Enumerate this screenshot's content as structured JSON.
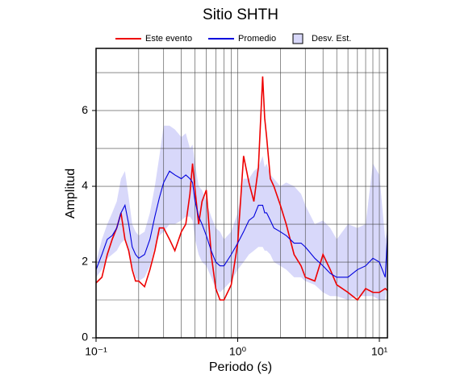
{
  "chart_data": {
    "type": "line",
    "title": "Sitio SHTH",
    "xlabel": "Periodo (s)",
    "ylabel": "Amplitud",
    "xscale": "log",
    "xlim": [
      0.1,
      11.4
    ],
    "ylim": [
      0,
      7.64
    ],
    "xticks": [
      {
        "value": 0.1,
        "label": "10⁻¹"
      },
      {
        "value": 1,
        "label": "10⁰"
      },
      {
        "value": 10,
        "label": "10¹"
      }
    ],
    "xgrid": [
      0.2,
      0.3,
      0.4,
      0.5,
      0.6,
      0.7,
      0.8,
      0.9,
      1,
      2,
      3,
      4,
      5,
      6,
      7,
      8,
      9,
      10
    ],
    "yticks": [
      0,
      2,
      4,
      6
    ],
    "ygrid": [
      1,
      2,
      3,
      4,
      5,
      6,
      7
    ],
    "x": [
      0.1,
      0.11,
      0.12,
      0.13,
      0.14,
      0.15,
      0.16,
      0.17,
      0.18,
      0.19,
      0.2,
      0.22,
      0.24,
      0.26,
      0.28,
      0.3,
      0.33,
      0.36,
      0.4,
      0.43,
      0.46,
      0.48,
      0.5,
      0.53,
      0.56,
      0.6,
      0.65,
      0.7,
      0.75,
      0.8,
      0.9,
      1.0,
      1.1,
      1.2,
      1.3,
      1.4,
      1.5,
      1.55,
      1.6,
      1.7,
      1.8,
      2.0,
      2.2,
      2.5,
      2.8,
      3.0,
      3.5,
      4,
      4.5,
      5,
      6,
      7,
      8,
      9,
      10,
      11,
      11.4
    ],
    "band": {
      "name": "Desv. Est.",
      "color": "#d8d8fa",
      "upper": [
        2.0,
        2.6,
        3.0,
        3.3,
        3.6,
        4.2,
        4.4,
        3.7,
        3.0,
        2.8,
        2.7,
        2.8,
        3.3,
        4.0,
        4.8,
        5.6,
        5.6,
        5.5,
        5.3,
        5.4,
        5.0,
        5.1,
        4.6,
        4.0,
        3.9,
        3.6,
        3.2,
        2.9,
        2.8,
        2.6,
        2.8,
        3.3,
        4.2,
        4.2,
        4.4,
        4.5,
        4.8,
        4.5,
        4.6,
        4.3,
        4.2,
        4.0,
        4.1,
        4.0,
        3.8,
        3.5,
        3.0,
        3.1,
        2.9,
        2.6,
        3.0,
        2.9,
        3.0,
        4.6,
        4.3,
        2.6,
        2.9
      ],
      "lower": [
        1.6,
        1.8,
        2.1,
        2.2,
        2.3,
        2.5,
        2.6,
        2.3,
        1.9,
        1.6,
        1.5,
        1.6,
        1.9,
        2.4,
        2.7,
        2.8,
        3.0,
        3.0,
        3.1,
        3.2,
        3.2,
        3.1,
        2.6,
        2.2,
        2.0,
        1.9,
        1.6,
        1.3,
        1.2,
        1.3,
        1.5,
        1.8,
        2.0,
        2.2,
        2.3,
        2.4,
        2.4,
        2.3,
        2.3,
        2.2,
        2.0,
        1.9,
        1.8,
        1.6,
        1.6,
        1.5,
        1.4,
        1.2,
        1.1,
        1.1,
        1.0,
        1.1,
        1.1,
        1.1,
        1.0,
        1.0,
        1.5
      ]
    },
    "series": [
      {
        "name": "Este evento",
        "color": "#ee0000",
        "values": [
          1.45,
          1.6,
          2.2,
          2.6,
          2.9,
          3.3,
          2.6,
          2.3,
          1.8,
          1.5,
          1.5,
          1.35,
          1.8,
          2.3,
          2.9,
          2.9,
          2.6,
          2.3,
          2.8,
          3.0,
          3.8,
          4.6,
          3.9,
          3.0,
          3.6,
          3.9,
          2.2,
          1.3,
          1.0,
          1.0,
          1.4,
          2.5,
          4.8,
          4.1,
          3.6,
          4.5,
          6.9,
          5.8,
          5.3,
          4.2,
          4.0,
          3.5,
          3.0,
          2.2,
          1.9,
          1.6,
          1.5,
          2.2,
          1.8,
          1.4,
          1.2,
          1.0,
          1.3,
          1.2,
          1.2,
          1.3,
          1.25
        ]
      },
      {
        "name": "Promedio",
        "color": "#0000dd",
        "values": [
          1.8,
          2.2,
          2.6,
          2.7,
          2.9,
          3.3,
          3.5,
          3.0,
          2.4,
          2.2,
          2.1,
          2.2,
          2.6,
          3.2,
          3.7,
          4.1,
          4.4,
          4.3,
          4.2,
          4.3,
          4.2,
          4.1,
          3.6,
          3.2,
          3.0,
          2.7,
          2.3,
          2.0,
          1.9,
          1.9,
          2.2,
          2.5,
          2.8,
          3.1,
          3.2,
          3.5,
          3.5,
          3.3,
          3.3,
          3.1,
          2.9,
          2.8,
          2.7,
          2.5,
          2.5,
          2.4,
          2.1,
          1.9,
          1.7,
          1.6,
          1.6,
          1.8,
          1.9,
          2.1,
          2.0,
          1.6,
          2.7
        ]
      }
    ]
  }
}
